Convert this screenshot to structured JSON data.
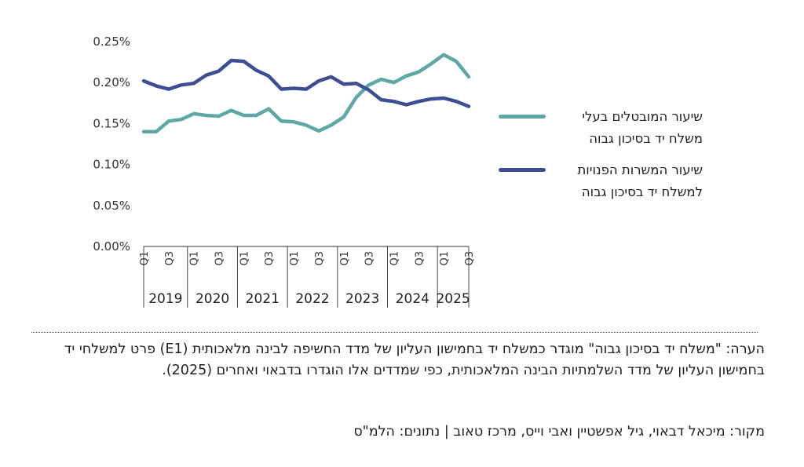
{
  "chart_data": {
    "type": "line",
    "title": "",
    "xlabel": "",
    "ylabel": "",
    "ylim": [
      0,
      0.25
    ],
    "y_ticks": [
      "0.25%",
      "0.20%",
      "0.15%",
      "0.10%",
      "0.05%",
      "0.00%"
    ],
    "quarter_tick_labels": [
      "Q1",
      "Q3"
    ],
    "years": [
      "2019",
      "2020",
      "2021",
      "2022",
      "2023",
      "2024",
      "2025"
    ],
    "grid": false,
    "legend_position": "right",
    "series": [
      {
        "name": "שיעור המובטלים בעלי משלח יד בסיכון גבוה",
        "legend_lines": [
          "שיעור המובטלים בעלי",
          "משלח יד בסיכון גבוה"
        ],
        "color": "#5ba8a4",
        "values": [
          0.14,
          0.14,
          0.153,
          0.155,
          0.162,
          0.16,
          0.159,
          0.166,
          0.16,
          0.16,
          0.168,
          0.153,
          0.152,
          0.148,
          0.141,
          0.148,
          0.158,
          0.182,
          0.197,
          0.204,
          0.2,
          0.208,
          0.213,
          0.223,
          0.234,
          0.226,
          0.207
        ]
      },
      {
        "name": "שיעור המשרות הפנויות למשלח יד בסיכון גבוה",
        "legend_lines": [
          "שיעור המשרות הפנויות",
          "למשלח יד בסיכון גבוה"
        ],
        "color": "#3c4f94",
        "values": [
          0.202,
          0.196,
          0.192,
          0.197,
          0.199,
          0.209,
          0.214,
          0.227,
          0.226,
          0.215,
          0.208,
          0.192,
          0.193,
          0.192,
          0.202,
          0.207,
          0.198,
          0.199,
          0.191,
          0.179,
          0.177,
          0.173,
          0.177,
          0.18,
          0.181,
          0.177,
          0.171
        ]
      }
    ]
  },
  "note_text": "הערה: \"משלח יד בסיכון גבוה\" מוגדר כמשלח יד בחמישון העליון של מדד החשיפה לבינה מלאכותית (E1) פרט למשלחי יד בחמישון העליון של מדד השלמתיות הבינה המלאכותית, כפי שמדדים אלו הוגדרו בדבאוי ואחרים (2025).",
  "source_text": "מקור: מיכאל דבאוי, גיל אפשטיין ואבי וייס, מרכז טאוב | נתונים: הלמ\"ס"
}
